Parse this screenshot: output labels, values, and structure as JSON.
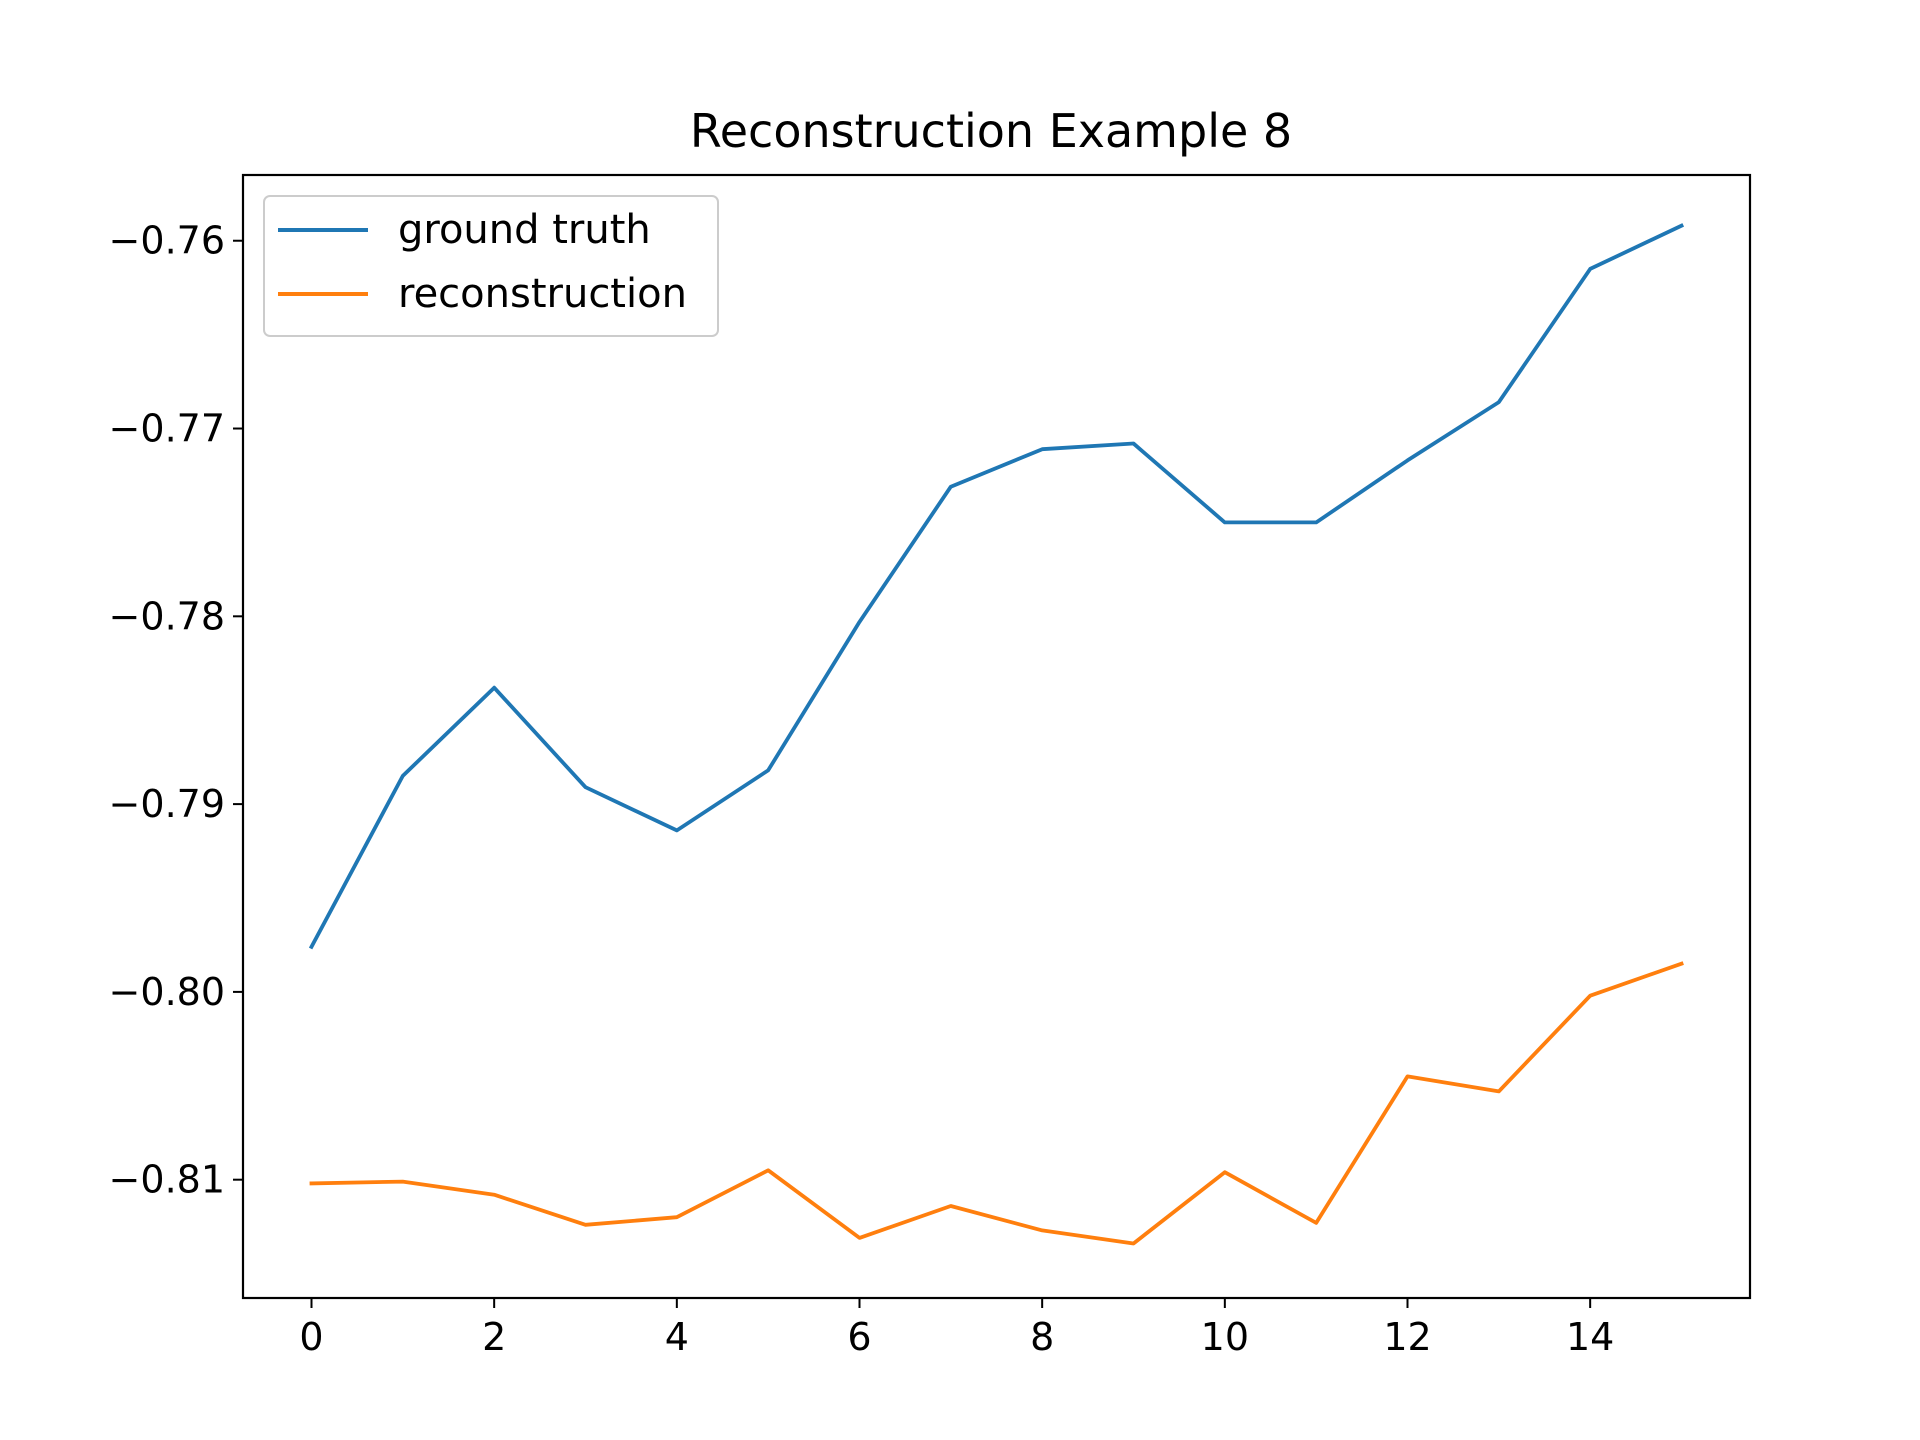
{
  "chart_data": {
    "type": "line",
    "title": "Reconstruction Example 8",
    "xlabel": "",
    "ylabel": "",
    "x": [
      0,
      1,
      2,
      3,
      4,
      5,
      6,
      7,
      8,
      9,
      10,
      11,
      12,
      13,
      14,
      15
    ],
    "xlim": [
      -0.75,
      15.75
    ],
    "ylim": [
      -0.8163,
      -0.7565
    ],
    "xticks": [
      0,
      2,
      4,
      6,
      8,
      10,
      12,
      14
    ],
    "xtick_labels": [
      "0",
      "2",
      "4",
      "6",
      "8",
      "10",
      "12",
      "14"
    ],
    "yticks": [
      -0.76,
      -0.77,
      -0.78,
      -0.79,
      -0.8,
      -0.81
    ],
    "ytick_labels": [
      "−0.76",
      "−0.77",
      "−0.78",
      "−0.79",
      "−0.80",
      "−0.81"
    ],
    "grid": false,
    "legend_position": "top-left",
    "series": [
      {
        "name": "ground truth",
        "color": "#1f77b4",
        "values": [
          -0.7976,
          -0.7885,
          -0.7838,
          -0.7891,
          -0.7914,
          -0.7882,
          -0.7803,
          -0.7731,
          -0.7711,
          -0.7708,
          -0.775,
          -0.775,
          -0.7717,
          -0.7686,
          -0.7615,
          -0.7592
        ]
      },
      {
        "name": "reconstruction",
        "color": "#ff7f0e",
        "values": [
          -0.8102,
          -0.8101,
          -0.8108,
          -0.8124,
          -0.812,
          -0.8095,
          -0.8131,
          -0.8114,
          -0.8127,
          -0.8134,
          -0.8096,
          -0.8123,
          -0.8045,
          -0.8053,
          -0.8002,
          -0.7985
        ]
      }
    ]
  }
}
